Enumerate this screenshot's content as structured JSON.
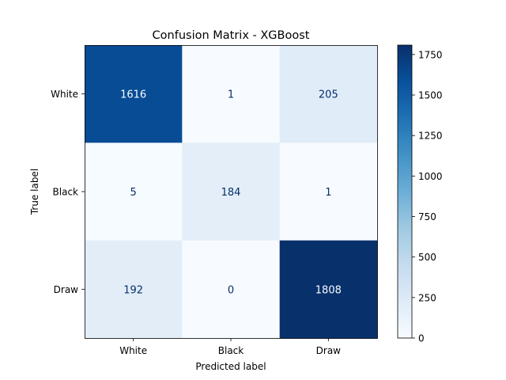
{
  "chart_data": {
    "type": "heatmap",
    "title": "Confusion Matrix - XGBoost",
    "xlabel": "Predicted label",
    "ylabel": "True label",
    "x_categories": [
      "White",
      "Black",
      "Draw"
    ],
    "y_categories": [
      "White",
      "Black",
      "Draw"
    ],
    "values": [
      [
        1616,
        1,
        205
      ],
      [
        5,
        184,
        1
      ],
      [
        192,
        0,
        1808
      ]
    ],
    "colormap": "Blues",
    "colorbar": {
      "min": 0,
      "max": 1808,
      "ticks": [
        0,
        250,
        500,
        750,
        1000,
        1250,
        1500,
        1750
      ]
    },
    "grid": false
  }
}
